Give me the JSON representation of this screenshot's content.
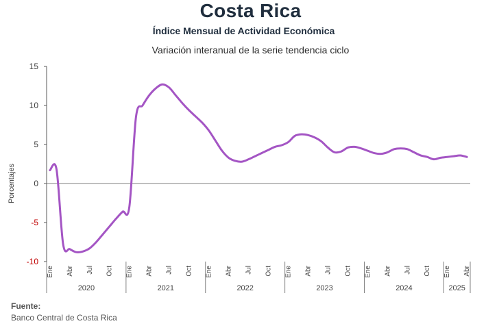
{
  "header": {
    "title": "Costa Rica",
    "subtitle": "Índice Mensual de Actividad Económica",
    "subtitle2": "Variación interanual de la serie tendencia ciclo"
  },
  "footer": {
    "source_label": "Fuente:",
    "source_text": "Banco Central de Costa Rica"
  },
  "chart_data": {
    "type": "line",
    "ylabel": "Porcentajes",
    "ylim": [
      -10,
      15
    ],
    "yticks": [
      15,
      10,
      5,
      0,
      -5,
      -10
    ],
    "grid": false,
    "line_color": "#a455c4",
    "month_labels": [
      "Ene",
      "Abr",
      "Jul",
      "Oct"
    ],
    "years": [
      "2020",
      "2021",
      "2022",
      "2023",
      "2024",
      "2025"
    ],
    "x": [
      "2020-01",
      "2020-02",
      "2020-03",
      "2020-04",
      "2020-05",
      "2020-06",
      "2020-07",
      "2020-08",
      "2020-09",
      "2020-10",
      "2020-11",
      "2020-12",
      "2021-01",
      "2021-02",
      "2021-03",
      "2021-04",
      "2021-05",
      "2021-06",
      "2021-07",
      "2021-08",
      "2021-09",
      "2021-10",
      "2021-11",
      "2021-12",
      "2022-01",
      "2022-02",
      "2022-03",
      "2022-04",
      "2022-05",
      "2022-06",
      "2022-07",
      "2022-08",
      "2022-09",
      "2022-10",
      "2022-11",
      "2022-12",
      "2023-01",
      "2023-02",
      "2023-03",
      "2023-04",
      "2023-05",
      "2023-06",
      "2023-07",
      "2023-08",
      "2023-09",
      "2023-10",
      "2023-11",
      "2023-12",
      "2024-01",
      "2024-02",
      "2024-03",
      "2024-04",
      "2024-05",
      "2024-06",
      "2024-07",
      "2024-08",
      "2024-09",
      "2024-10",
      "2024-11",
      "2024-12",
      "2025-01",
      "2025-02",
      "2025-03",
      "2025-04"
    ],
    "series": [
      {
        "values": [
          1.7,
          1.8,
          -7.8,
          -8.4,
          -8.8,
          -8.7,
          -8.3,
          -7.5,
          -6.5,
          -5.5,
          -4.5,
          -3.6,
          -3.0,
          8.5,
          10.0,
          11.3,
          12.2,
          12.7,
          12.3,
          11.3,
          10.3,
          9.4,
          8.6,
          7.8,
          6.8,
          5.5,
          4.2,
          3.3,
          2.9,
          2.8,
          3.1,
          3.5,
          3.9,
          4.3,
          4.7,
          4.9,
          5.3,
          6.1,
          6.3,
          6.2,
          5.9,
          5.4,
          4.6,
          4.0,
          4.1,
          4.6,
          4.7,
          4.5,
          4.2,
          3.9,
          3.8,
          4.0,
          4.4,
          4.5,
          4.4,
          4.0,
          3.6,
          3.4,
          3.1,
          3.3,
          3.4,
          3.5,
          3.6,
          3.4
        ]
      }
    ]
  }
}
